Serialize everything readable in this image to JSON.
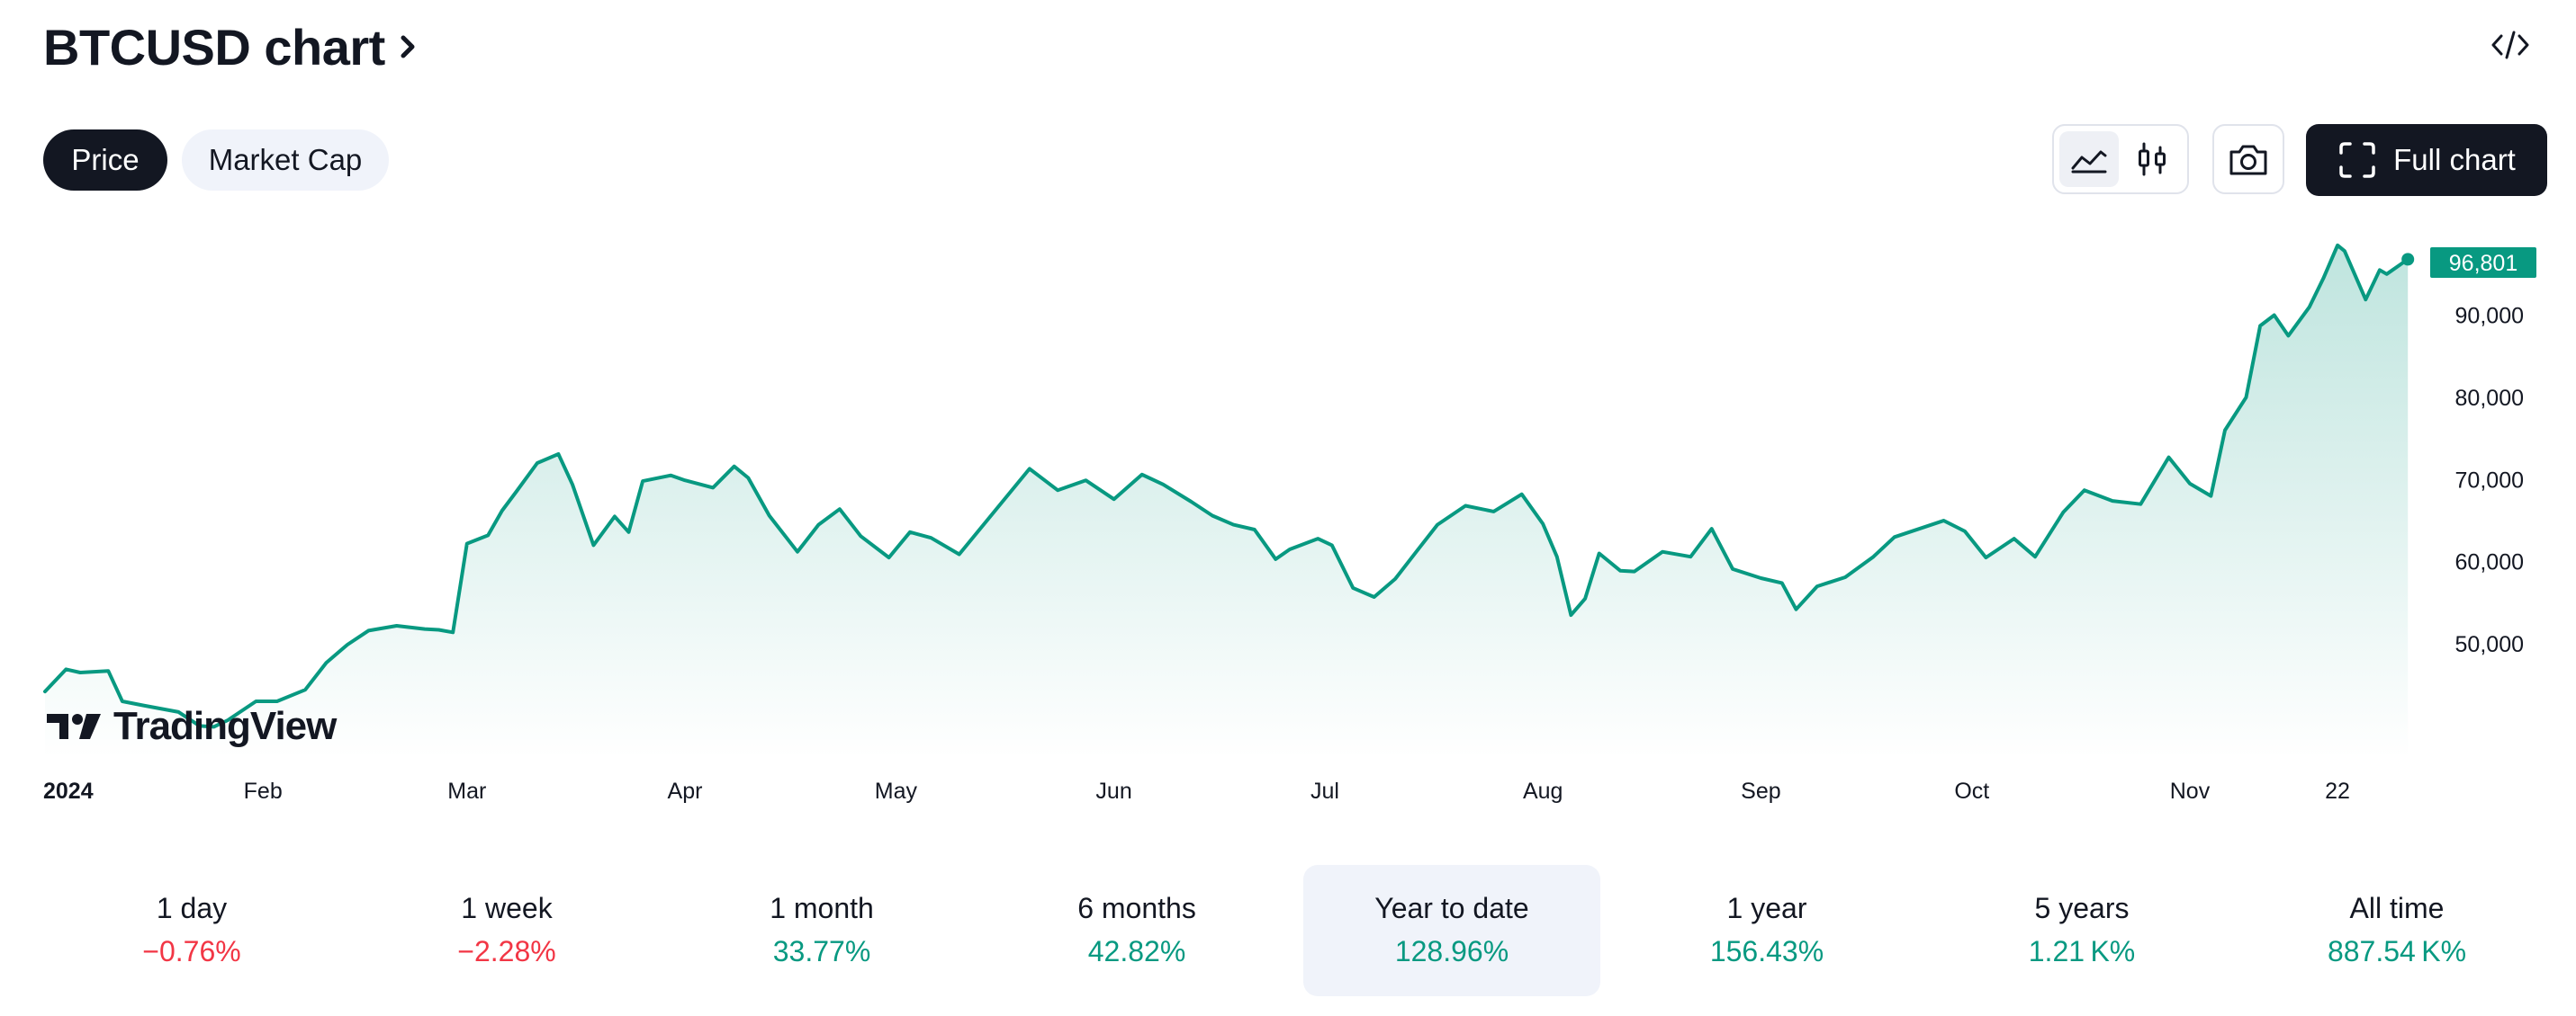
{
  "header": {
    "title": "BTCUSD chart",
    "chevron_icon": "chevron-right-icon",
    "embed_icon": "code-embed-icon"
  },
  "tabs": [
    {
      "label": "Price",
      "active": true
    },
    {
      "label": "Market Cap",
      "active": false
    }
  ],
  "toolbar": {
    "style_icons": [
      "area-chart-icon",
      "candlestick-icon"
    ],
    "camera_icon": "camera-icon",
    "full_chart_icon": "fullscreen-icon",
    "full_chart_label": "Full chart"
  },
  "branding": {
    "logo_text": "TradingView"
  },
  "colors": {
    "line": "#089981",
    "negative": "#f23645",
    "positive": "#089981",
    "dark": "#131722",
    "selected_bg": "#f0f3fa"
  },
  "chart_data": {
    "type": "area",
    "series": [
      {
        "symbol": "BTCUSD",
        "x": [
          "2024-01-01",
          "2024-01-04",
          "2024-01-06",
          "2024-01-10",
          "2024-01-12",
          "2024-01-15",
          "2024-01-20",
          "2024-01-23",
          "2024-01-25",
          "2024-01-27",
          "2024-01-31",
          "2024-02-03",
          "2024-02-07",
          "2024-02-10",
          "2024-02-13",
          "2024-02-16",
          "2024-02-20",
          "2024-02-24",
          "2024-02-26",
          "2024-02-28",
          "2024-03-01",
          "2024-03-04",
          "2024-03-06",
          "2024-03-08",
          "2024-03-11",
          "2024-03-14",
          "2024-03-16",
          "2024-03-19",
          "2024-03-22",
          "2024-03-24",
          "2024-03-26",
          "2024-03-30",
          "2024-04-01",
          "2024-04-05",
          "2024-04-08",
          "2024-04-10",
          "2024-04-13",
          "2024-04-17",
          "2024-04-20",
          "2024-04-23",
          "2024-04-26",
          "2024-04-30",
          "2024-05-03",
          "2024-05-06",
          "2024-05-10",
          "2024-05-15",
          "2024-05-20",
          "2024-05-24",
          "2024-05-28",
          "2024-06-01",
          "2024-06-05",
          "2024-06-08",
          "2024-06-12",
          "2024-06-15",
          "2024-06-18",
          "2024-06-21",
          "2024-06-24",
          "2024-06-26",
          "2024-06-30",
          "2024-07-02",
          "2024-07-05",
          "2024-07-08",
          "2024-07-11",
          "2024-07-14",
          "2024-07-17",
          "2024-07-21",
          "2024-07-25",
          "2024-07-29",
          "2024-08-01",
          "2024-08-03",
          "2024-08-05",
          "2024-08-07",
          "2024-08-09",
          "2024-08-12",
          "2024-08-14",
          "2024-08-18",
          "2024-08-22",
          "2024-08-25",
          "2024-08-28",
          "2024-09-01",
          "2024-09-04",
          "2024-09-06",
          "2024-09-09",
          "2024-09-13",
          "2024-09-17",
          "2024-09-20",
          "2024-09-27",
          "2024-09-30",
          "2024-10-03",
          "2024-10-07",
          "2024-10-10",
          "2024-10-14",
          "2024-10-17",
          "2024-10-21",
          "2024-10-25",
          "2024-10-29",
          "2024-11-01",
          "2024-11-04",
          "2024-11-06",
          "2024-11-09",
          "2024-11-11",
          "2024-11-13",
          "2024-11-15",
          "2024-11-18",
          "2024-11-20",
          "2024-11-22",
          "2024-11-23",
          "2024-11-26",
          "2024-11-28",
          "2024-11-29",
          "2024-12-02"
        ],
        "values": [
          44200,
          46900,
          46500,
          46700,
          43000,
          42500,
          41700,
          40000,
          39900,
          40700,
          43000,
          43000,
          44400,
          47700,
          49900,
          51600,
          52200,
          51800,
          51700,
          51400,
          62200,
          63200,
          66200,
          68500,
          72000,
          73100,
          69400,
          62000,
          65500,
          63600,
          69800,
          70500,
          69900,
          69000,
          71600,
          70200,
          65600,
          61200,
          64500,
          66400,
          63100,
          60500,
          63600,
          62900,
          60900,
          66100,
          71300,
          68700,
          69900,
          67600,
          70600,
          69400,
          67300,
          65600,
          64500,
          63900,
          60300,
          61500,
          62800,
          62000,
          56800,
          55700,
          57900,
          61200,
          64500,
          66800,
          66100,
          68200,
          64600,
          60600,
          53500,
          55500,
          61000,
          58900,
          58800,
          61200,
          60600,
          64000,
          59100,
          58000,
          57400,
          54200,
          57000,
          58100,
          60600,
          63000,
          65000,
          63700,
          60500,
          62800,
          60600,
          66000,
          68700,
          67400,
          67000,
          72700,
          69500,
          68000,
          76000,
          80000,
          88700,
          90000,
          87500,
          91000,
          94500,
          98500,
          97800,
          91900,
          95500,
          95000,
          96801
        ],
        "last_value_label": "96,801"
      }
    ],
    "x_ticks": [
      "2024",
      "Feb",
      "Mar",
      "Apr",
      "May",
      "Jun",
      "Jul",
      "Aug",
      "Sep",
      "Oct",
      "Nov",
      "22"
    ],
    "y_ticks": [
      "50,000",
      "60,000",
      "70,000",
      "80,000",
      "90,000"
    ],
    "y_tick_values": [
      50000,
      60000,
      70000,
      80000,
      90000
    ],
    "ylim": [
      36000,
      101000
    ],
    "xlim": [
      "2024-01-01",
      "2024-12-03"
    ],
    "grid": false,
    "fill": "gradient"
  },
  "periods": [
    {
      "label": "1 day",
      "value": "−0.76%",
      "sign": "neg",
      "selected": false
    },
    {
      "label": "1 week",
      "value": "−2.28%",
      "sign": "neg",
      "selected": false
    },
    {
      "label": "1 month",
      "value": "33.77%",
      "sign": "pos",
      "selected": false
    },
    {
      "label": "6 months",
      "value": "42.82%",
      "sign": "pos",
      "selected": false
    },
    {
      "label": "Year to date",
      "value": "128.96%",
      "sign": "pos",
      "selected": true
    },
    {
      "label": "1 year",
      "value": "156.43%",
      "sign": "pos",
      "selected": false
    },
    {
      "label": "5 years",
      "value": "1.21 K%",
      "sign": "pos",
      "selected": false
    },
    {
      "label": "All time",
      "value": "887.54 K%",
      "sign": "pos",
      "selected": false
    }
  ]
}
